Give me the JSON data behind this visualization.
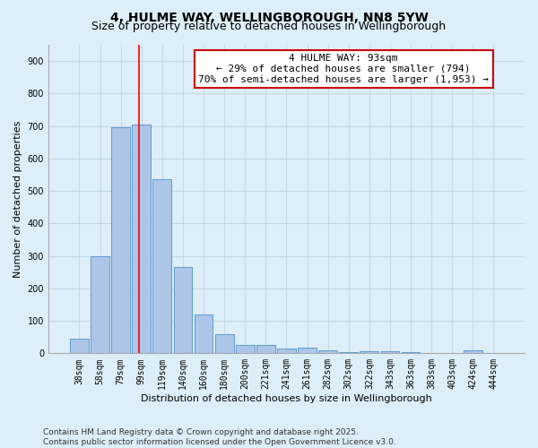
{
  "title_line1": "4, HULME WAY, WELLINGBOROUGH, NN8 5YW",
  "title_line2": "Size of property relative to detached houses in Wellingborough",
  "xlabel": "Distribution of detached houses by size in Wellingborough",
  "ylabel": "Number of detached properties",
  "bar_labels": [
    "38sqm",
    "58sqm",
    "79sqm",
    "99sqm",
    "119sqm",
    "140sqm",
    "160sqm",
    "180sqm",
    "200sqm",
    "221sqm",
    "241sqm",
    "261sqm",
    "282sqm",
    "302sqm",
    "322sqm",
    "343sqm",
    "363sqm",
    "383sqm",
    "403sqm",
    "424sqm",
    "444sqm"
  ],
  "bar_values": [
    45,
    300,
    695,
    705,
    535,
    265,
    120,
    60,
    25,
    25,
    15,
    18,
    10,
    5,
    7,
    7,
    3,
    2,
    1,
    8,
    0
  ],
  "bar_color": "#adc6e8",
  "bar_edge_color": "#5b9bd5",
  "grid_color": "#c8d8e8",
  "background_color": "#ddeef9",
  "red_line_x": 2.9,
  "annotation_text": "4 HULME WAY: 93sqm\n← 29% of detached houses are smaller (794)\n70% of semi-detached houses are larger (1,953) →",
  "annotation_box_color": "#ffffff",
  "annotation_box_edge": "#cc0000",
  "ylim": [
    0,
    950
  ],
  "yticks": [
    0,
    100,
    200,
    300,
    400,
    500,
    600,
    700,
    800,
    900
  ],
  "footer_text": "Contains HM Land Registry data © Crown copyright and database right 2025.\nContains public sector information licensed under the Open Government Licence v3.0.",
  "title_fontsize": 10,
  "subtitle_fontsize": 9,
  "axis_label_fontsize": 8,
  "tick_fontsize": 7,
  "annotation_fontsize": 8,
  "footer_fontsize": 6.5
}
